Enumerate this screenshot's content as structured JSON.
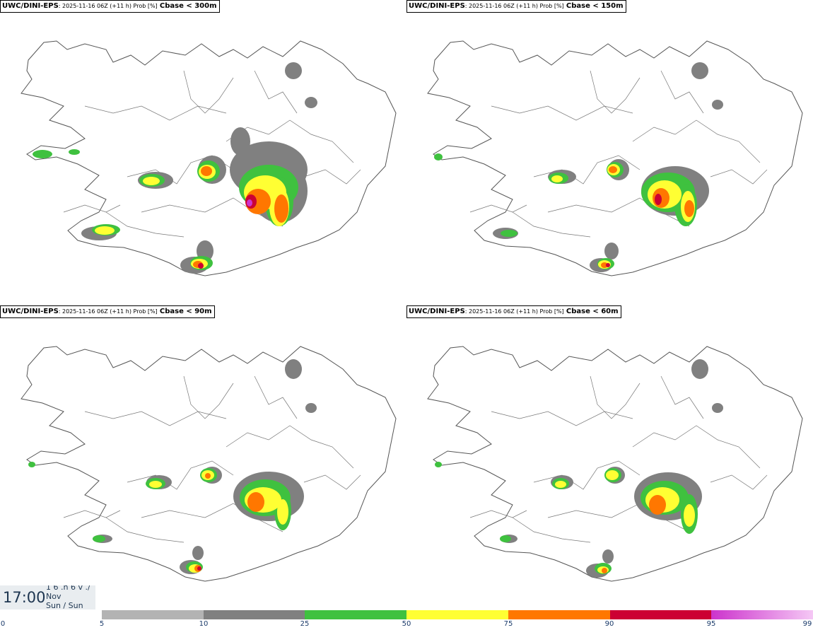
{
  "panels": [
    {
      "model": "UWC/DINI-EPS",
      "meta": ": 2025-11-16 06Z (+11 h) Prob [%]",
      "param": "Cbase < 300m"
    },
    {
      "model": "UWC/DINI-EPS",
      "meta": ": 2025-11-16 06Z (+11 h) Prob [%]",
      "param": "Cbase < 150m"
    },
    {
      "model": "UWC/DINI-EPS",
      "meta": ": 2025-11-16 06Z (+11 h) Prob [%]",
      "param": "Cbase < 90m"
    },
    {
      "model": "UWC/DINI-EPS",
      "meta": ": 2025-11-16 06Z (+11 h) Prob [%]",
      "param": "Cbase < 60m"
    }
  ],
  "time": {
    "hour": "17:00",
    "line1": "1 6 .h 6 v ./",
    "line2": "Nov",
    "line3": "Sun / Sun"
  },
  "legend": {
    "ticks": [
      "0",
      "5",
      "10",
      "25",
      "50",
      "75",
      "90",
      "95",
      "99"
    ],
    "colors": [
      "#b3b3b3",
      "#808080",
      "#3fc13f",
      "#ffff33",
      "#ff7700",
      "#cc0033",
      "#cc33cc"
    ],
    "last_color_end": "#f5c8f5"
  },
  "colors": {
    "land_outline": "#555555",
    "p5": "#b3b3b3",
    "p10": "#808080",
    "p25": "#3fc13f",
    "p50": "#ffff33",
    "p75": "#ff7700",
    "p90": "#cc0033",
    "p95": "#cc33cc"
  }
}
